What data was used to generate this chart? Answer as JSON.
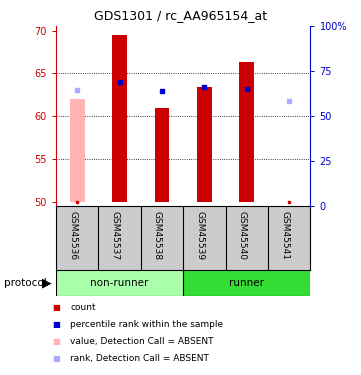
{
  "title": "GDS1301 / rc_AA965154_at",
  "samples": [
    "GSM45536",
    "GSM45537",
    "GSM45538",
    "GSM45539",
    "GSM45540",
    "GSM45541"
  ],
  "groups": [
    "non-runner",
    "non-runner",
    "non-runner",
    "runner",
    "runner",
    "runner"
  ],
  "ylim_left": [
    49.5,
    70.5
  ],
  "ylim_right": [
    0,
    100
  ],
  "yticks_left": [
    50,
    55,
    60,
    65,
    70
  ],
  "yticks_right": [
    0,
    25,
    50,
    75,
    100
  ],
  "bar_base": 50,
  "bar_tops": [
    null,
    69.5,
    61.0,
    63.4,
    66.3,
    null
  ],
  "rank_squares": [
    63.1,
    64.0,
    63.0,
    63.4,
    63.2,
    61.8
  ],
  "absent_flags": [
    true,
    false,
    false,
    false,
    false,
    true
  ],
  "absent_bar_tops": [
    62.0,
    null,
    null,
    null,
    null,
    null
  ],
  "absent_rank": [
    63.1,
    null,
    null,
    null,
    null,
    61.8
  ],
  "absent_dot_y": [
    50.0,
    null,
    null,
    null,
    null,
    50.0
  ],
  "bar_color": "#cc0000",
  "bar_absent_color": "#ffb3b3",
  "rank_color": "#0000cc",
  "rank_absent_color": "#aaaaff",
  "group_colors": {
    "non-runner": "#aaffaa",
    "runner": "#33dd33"
  },
  "bar_width": 0.35,
  "left_axis_color": "#cc0000",
  "right_axis_color": "#0000cc",
  "background_color": "#ffffff",
  "grid_color": "#000000",
  "legend_items": [
    {
      "label": "count",
      "color": "#cc0000"
    },
    {
      "label": "percentile rank within the sample",
      "color": "#0000cc"
    },
    {
      "label": "value, Detection Call = ABSENT",
      "color": "#ffb3b3"
    },
    {
      "label": "rank, Detection Call = ABSENT",
      "color": "#aaaaff"
    }
  ]
}
